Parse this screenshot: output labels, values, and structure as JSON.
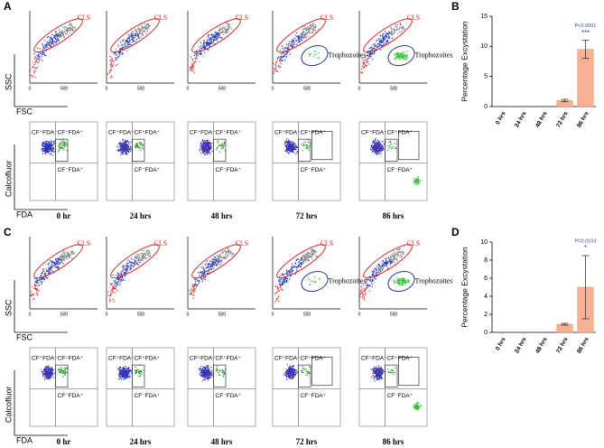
{
  "panels": [
    {
      "panel_label": "A",
      "y_label": "SSC",
      "x_label": "FSC",
      "quad_y_label": "Calcofluor",
      "quad_x_label": "FDA",
      "gate_label": "CLS",
      "troph_label": "Trophozoites",
      "axis_ticks": [
        "0",
        "500"
      ],
      "quadrants": [
        "CF⁺FDA⁻",
        "CF⁺FDA⁺",
        "CF⁻FDA⁺"
      ],
      "times": [
        "0 hr",
        "24 hrs",
        "48 hrs",
        "72 hrs",
        "86 hrs"
      ]
    },
    {
      "panel_label": "C",
      "y_label": "SSC",
      "x_label": "FSC",
      "quad_y_label": "Calcofluor",
      "quad_x_label": "FDA",
      "gate_label": "CLS",
      "troph_label": "Trophozoites",
      "axis_ticks": [
        "0",
        "500"
      ],
      "quadrants": [
        "CF⁺FDA⁻",
        "CF⁺FDA⁺",
        "CF⁻FDA⁺"
      ],
      "times": [
        "0 hr",
        "24 hrs",
        "48 hrs",
        "72 hrs",
        "86 hrs"
      ]
    }
  ],
  "chart_data": [
    {
      "type": "bar",
      "panel_label": "B",
      "y_label": "Percentage Excystation",
      "categories": [
        "0 hrs",
        "24 hrs",
        "48 hrs",
        "72 hrs",
        "86 hrs"
      ],
      "values": [
        0,
        0,
        0,
        1,
        9.5
      ],
      "errors": [
        0,
        0,
        0,
        0.2,
        1.5
      ],
      "color": "#f6b092",
      "ylim": [
        0,
        15
      ],
      "yticks": [
        0,
        5,
        10,
        15
      ],
      "p_value": "P<0.0001",
      "significance": "***"
    },
    {
      "type": "bar",
      "panel_label": "D",
      "y_label": "Percentage Excystation",
      "categories": [
        "0 hrs",
        "24 hrs",
        "48 hrs",
        "72 hrs",
        "86 hrs"
      ],
      "values": [
        0,
        0,
        0,
        0.9,
        5
      ],
      "errors": [
        0,
        0,
        0,
        0.1,
        3.5
      ],
      "color": "#f6b092",
      "ylim": [
        0,
        10
      ],
      "yticks": [
        0,
        2,
        4,
        6,
        8,
        10
      ],
      "p_value": "P=0.0103",
      "significance": "*"
    }
  ]
}
